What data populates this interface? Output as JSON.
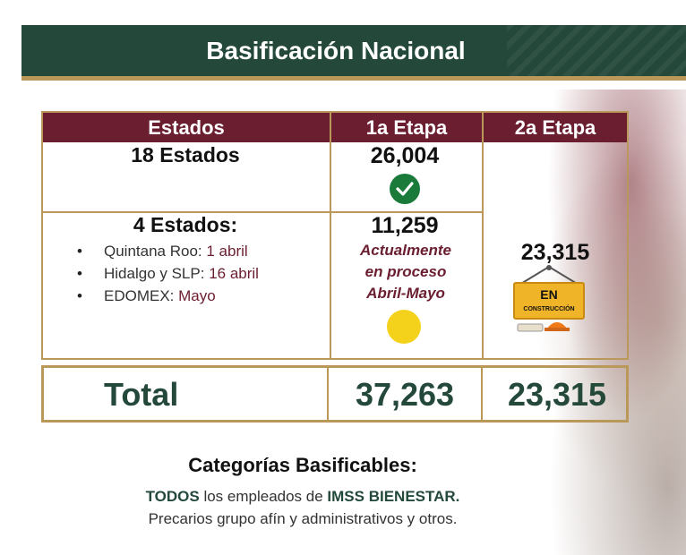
{
  "title": "Basificación Nacional",
  "table": {
    "headers": [
      "Estados",
      "1a Etapa",
      "2a Etapa"
    ],
    "row1": {
      "estados": "18 Estados",
      "etapa1": "26,004"
    },
    "row2": {
      "estados": "4 Estados:",
      "bullets": [
        {
          "name": "Quintana Roo: ",
          "date": "1 abril"
        },
        {
          "name": "Hidalgo y SLP: ",
          "date": "16 abril"
        },
        {
          "name": "EDOMEX: ",
          "date": "Mayo"
        }
      ],
      "etapa1": "11,259",
      "status_lines": [
        "Actualmente",
        "en proceso",
        "Abril-Mayo"
      ]
    },
    "etapa2_value": "23,315",
    "sign_line1": "EN",
    "sign_line2": "CONSTRUCCIÓN",
    "total": {
      "label": "Total",
      "etapa1": "37,263",
      "etapa2": "23,315"
    }
  },
  "footer": {
    "title": "Categorías Basificables:",
    "line1_strong1": "TODOS",
    "line1_mid": " los empleados de ",
    "line1_strong2": "IMSS BIENESTAR.",
    "line2": "Precarios grupo afín y administrativos y otros."
  },
  "colors": {
    "green": "#24493b",
    "maroon": "#6b1e2f",
    "gold": "#b9985a",
    "check": "#1a7a3a",
    "yellow": "#f4d21c"
  },
  "icons": [
    "check-circle-icon",
    "status-dot-icon",
    "under-construction-sign-icon"
  ]
}
